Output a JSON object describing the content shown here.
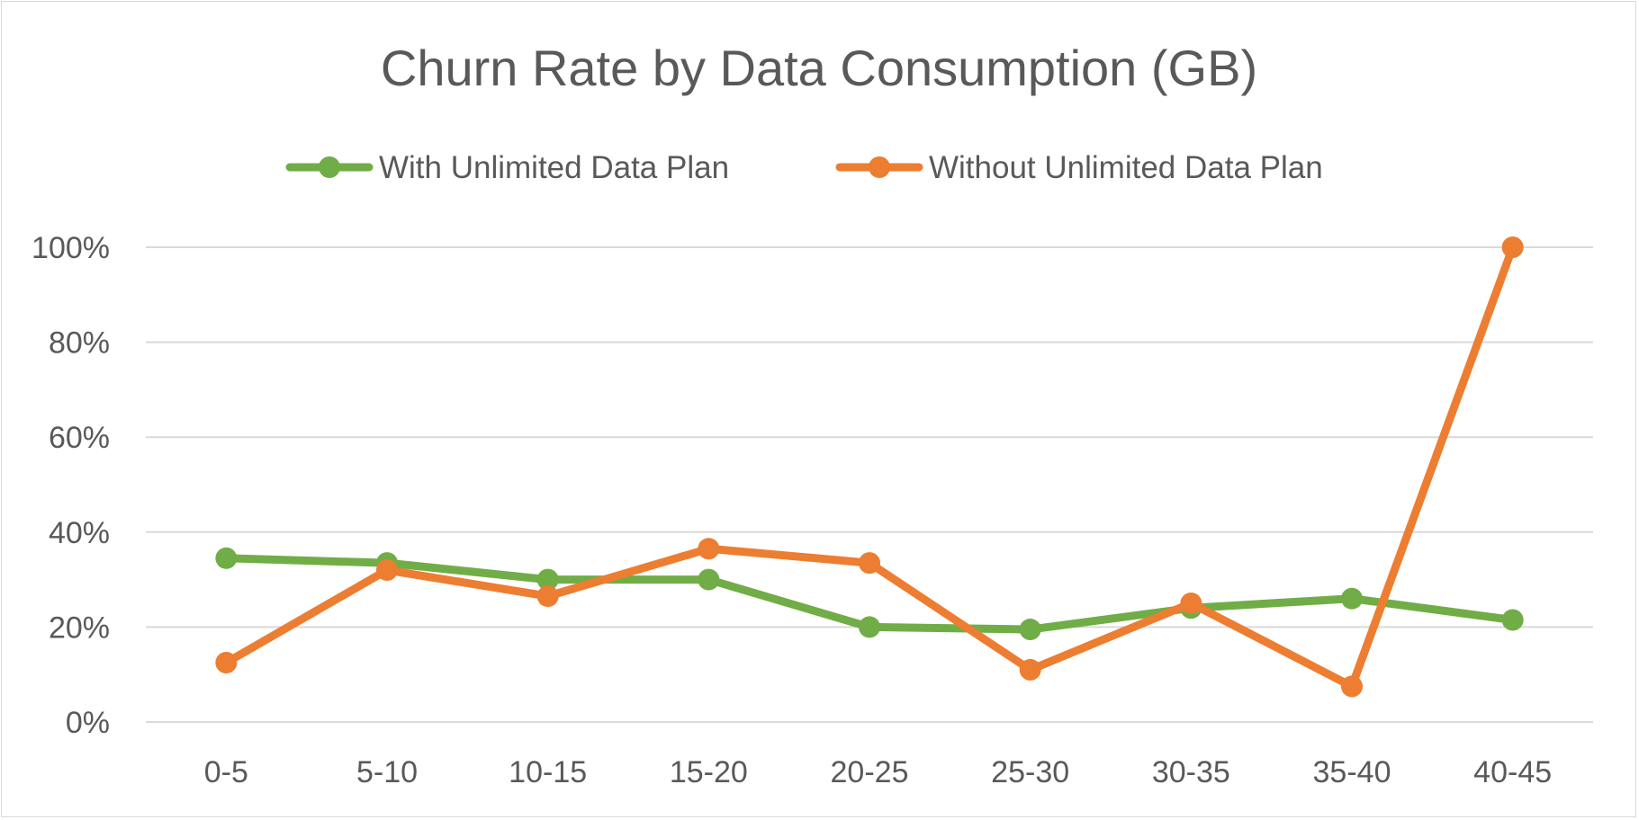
{
  "chart_data": {
    "type": "line",
    "title": "Churn Rate by Data Consumption (GB)",
    "categories": [
      "0-5",
      "5-10",
      "10-15",
      "15-20",
      "20-25",
      "25-30",
      "30-35",
      "35-40",
      "40-45"
    ],
    "y_ticks": [
      "0%",
      "20%",
      "40%",
      "60%",
      "80%",
      "100%"
    ],
    "ylim": [
      0,
      100
    ],
    "y_unit": "%",
    "grid": true,
    "legend_position": "top",
    "series": [
      {
        "name": "With Unlimited Data Plan",
        "color": "#70ad47",
        "values": [
          34.5,
          33.5,
          30,
          30,
          20,
          19.5,
          24,
          26,
          21.5
        ]
      },
      {
        "name": "Without Unlimited Data Plan",
        "color": "#ed7d31",
        "values": [
          12.5,
          32,
          26.5,
          36.5,
          33.5,
          11,
          25,
          7.5,
          100
        ]
      }
    ]
  }
}
